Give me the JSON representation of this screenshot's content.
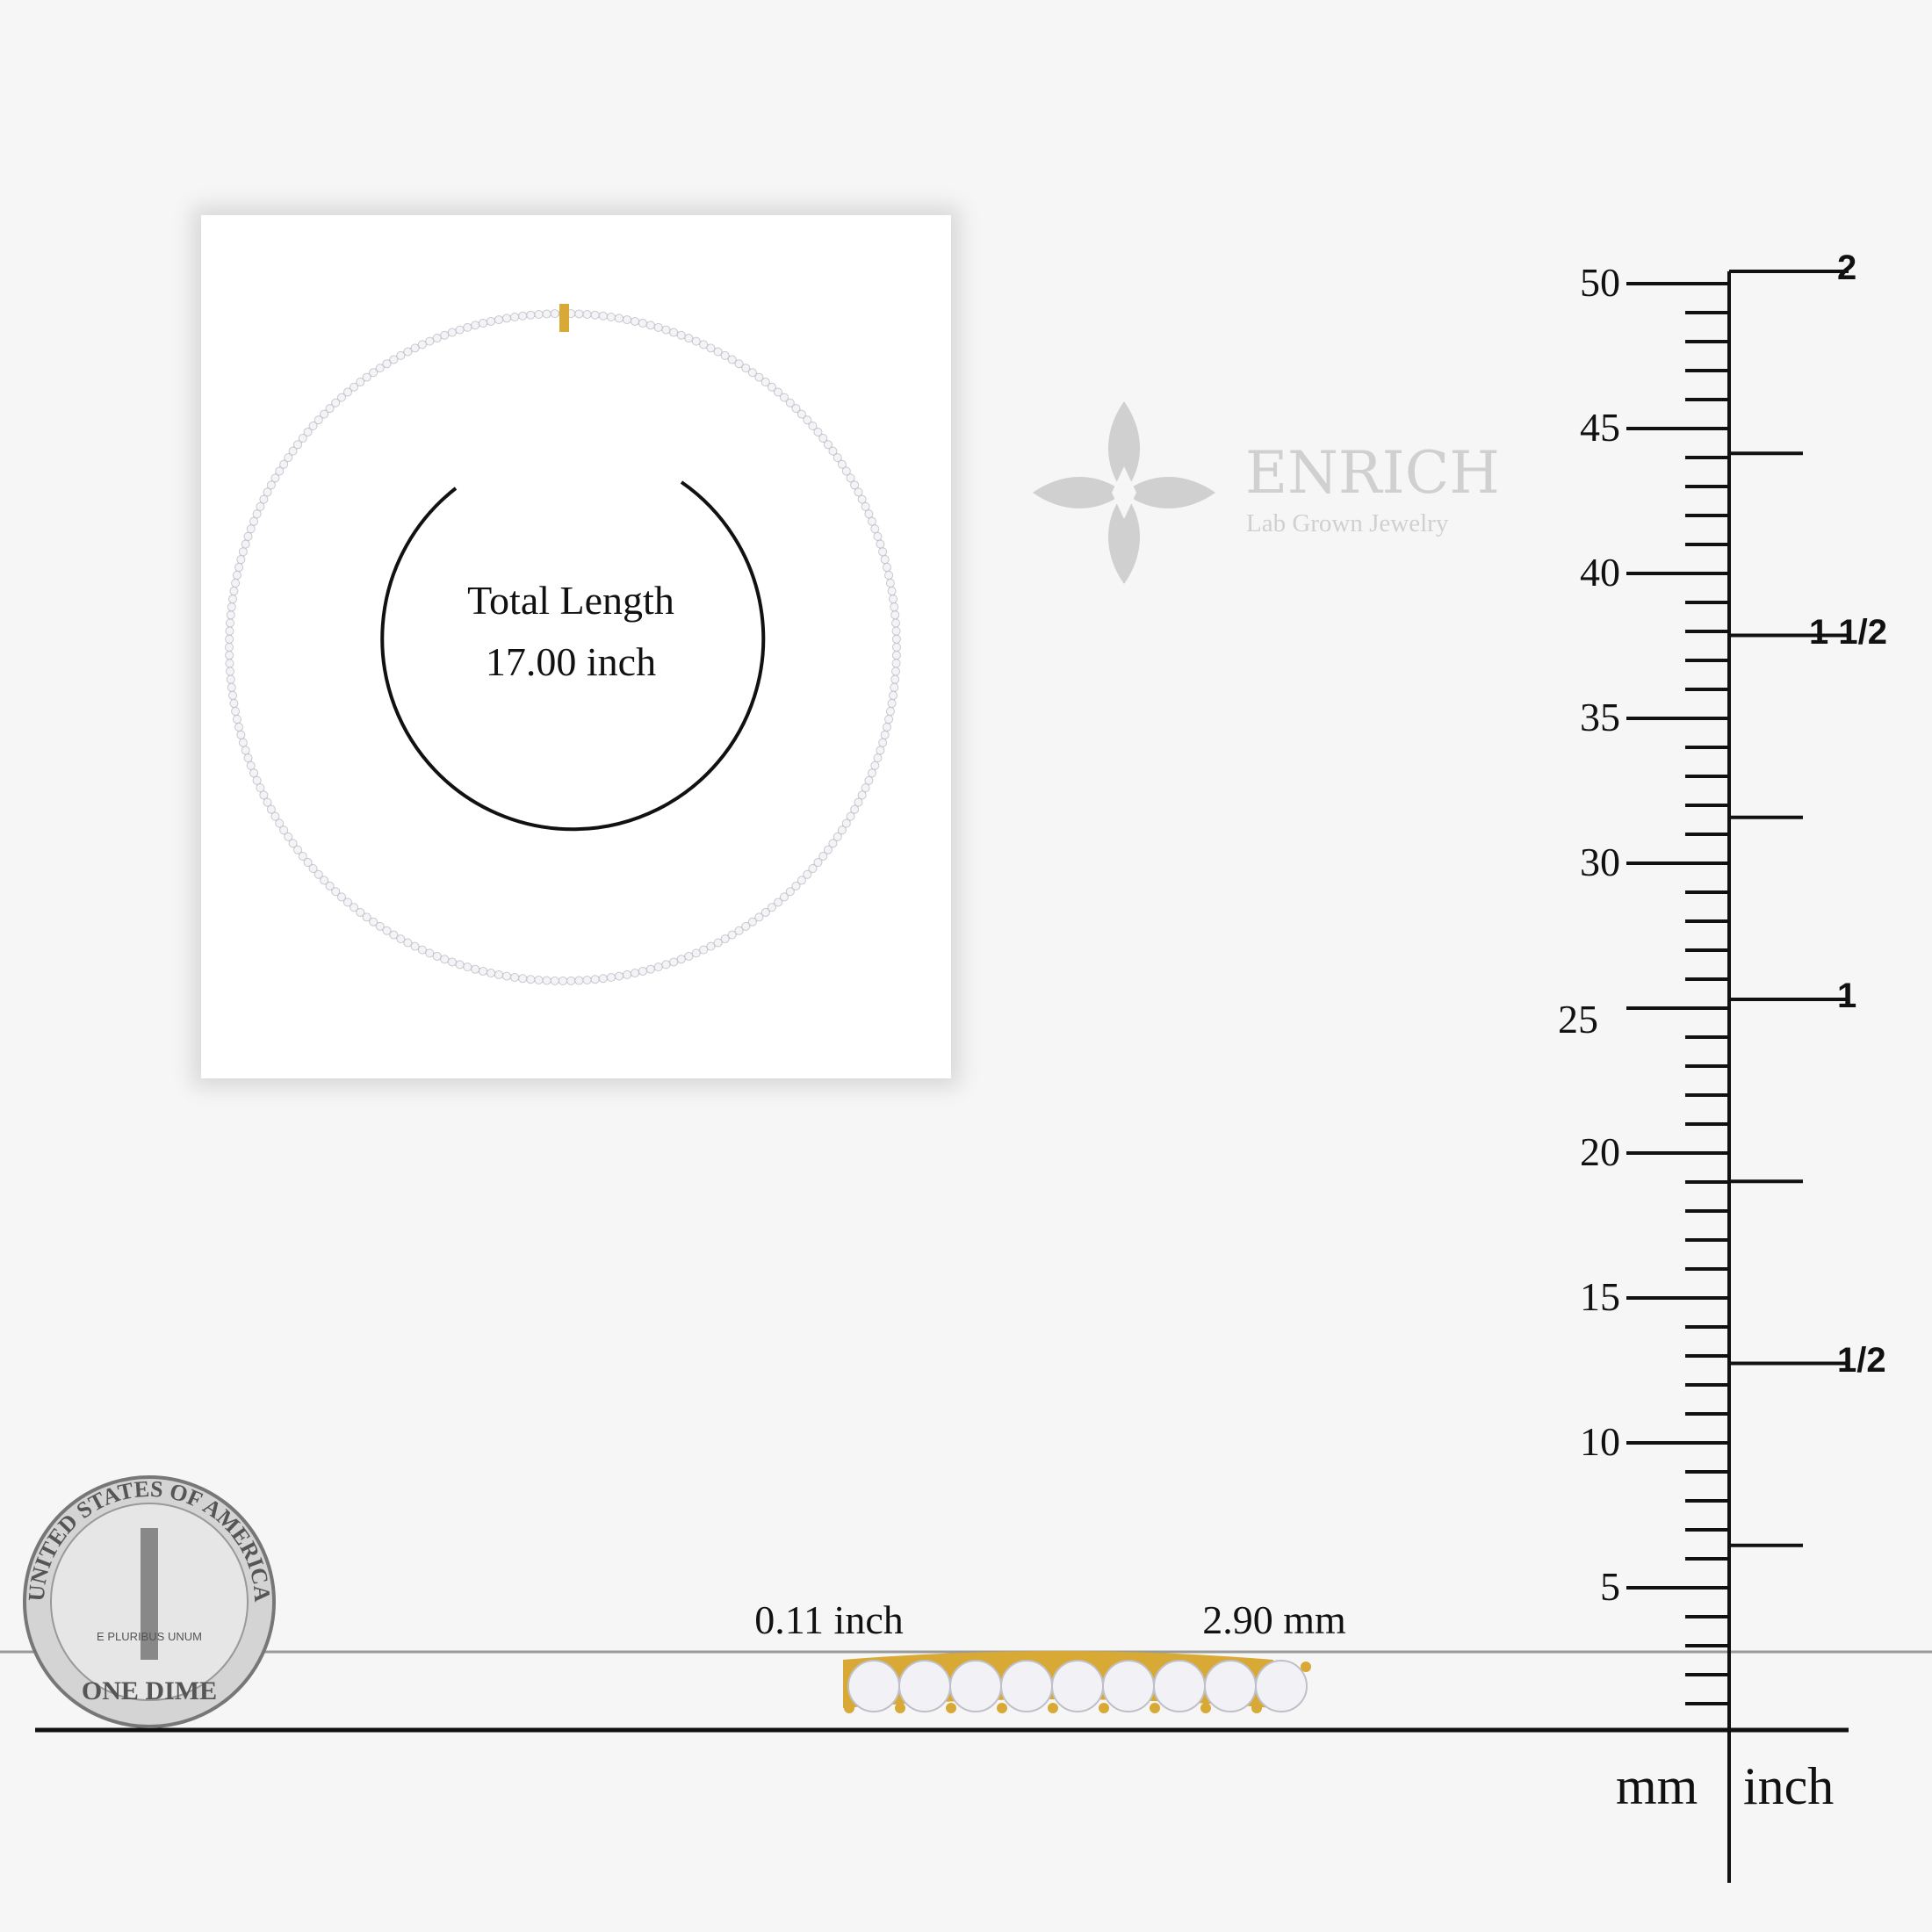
{
  "card": {
    "title_line1": "Total Length",
    "title_line2": "17.00 inch"
  },
  "logo": {
    "brand": "ENRICH",
    "tagline": "Lab Grown Jewelry",
    "color": "#d0d0d0"
  },
  "dimensions": {
    "width_inch": "0.11 inch",
    "width_mm": "2.90 mm"
  },
  "ruler": {
    "mm_label": "mm",
    "inch_label": "inch",
    "mm_ticks": [
      "5",
      "10",
      "15",
      "20",
      "25",
      "30",
      "35",
      "40",
      "45",
      "50"
    ],
    "inch_ticks": [
      {
        "v": 0.5,
        "label": "1/2"
      },
      {
        "v": 1,
        "label": "1"
      },
      {
        "v": 1.5,
        "label": "1 1/2"
      },
      {
        "v": 2,
        "label": "2"
      }
    ]
  },
  "coin": {
    "text": "UNITED STATES OF AMERICA",
    "denomination": "ONE DIME",
    "motto": "E PLURIBUS UNUM"
  },
  "colors": {
    "gold": "#d9a936",
    "ink": "#111111"
  }
}
